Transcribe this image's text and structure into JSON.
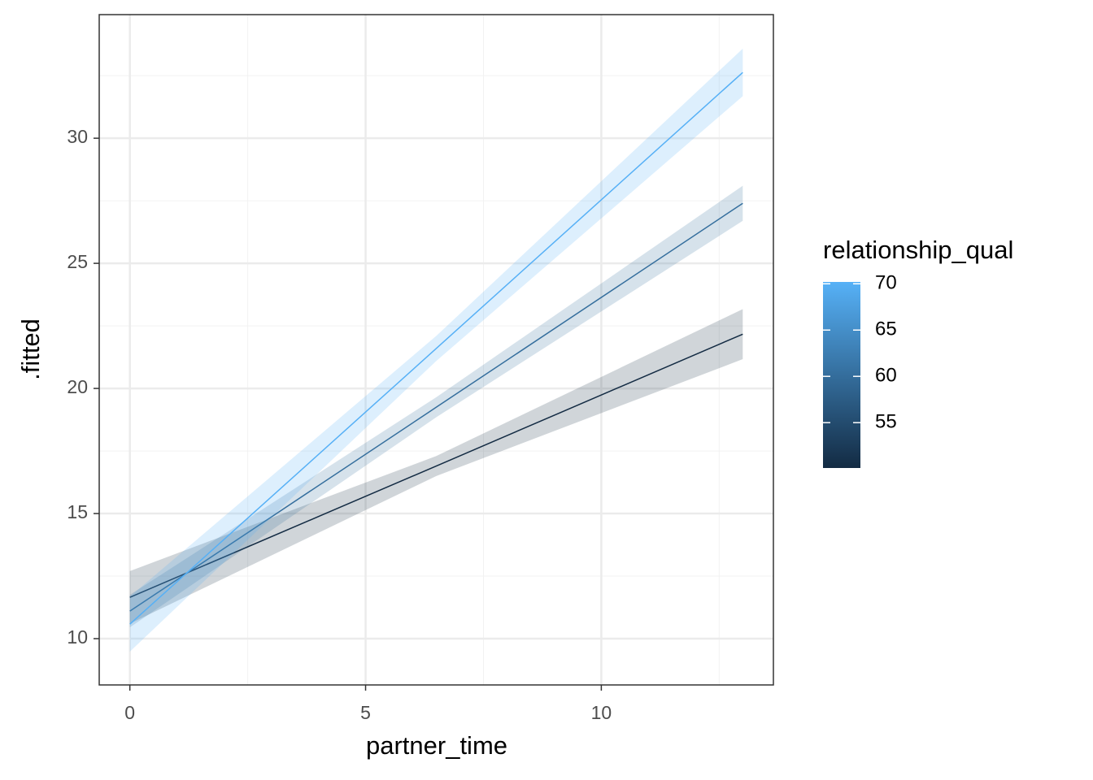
{
  "chart_data": {
    "type": "line",
    "x_label": "partner_time",
    "y_label": ".fitted",
    "x": [
      0,
      6.5,
      13
    ],
    "series": [
      {
        "level": 50.1,
        "values": [
          11.65,
          16.9,
          22.17
        ],
        "lower": [
          10.6,
          16.5,
          21.17
        ],
        "upper": [
          12.7,
          17.3,
          23.17
        ]
      },
      {
        "level": 60.1,
        "values": [
          11.1,
          19.25,
          27.4
        ],
        "lower": [
          10.45,
          18.85,
          26.7
        ],
        "upper": [
          11.75,
          19.65,
          28.1
        ]
      },
      {
        "level": 70.1,
        "values": [
          10.58,
          21.6,
          32.63
        ],
        "lower": [
          9.48,
          21.1,
          31.68
        ],
        "upper": [
          11.68,
          22.1,
          33.58
        ]
      }
    ],
    "xlim": [
      -0.65,
      13.65
    ],
    "ylim": [
      8.15,
      34.94
    ],
    "xticks": [
      0,
      5,
      10
    ],
    "yticks": [
      10,
      15,
      20,
      25,
      30
    ],
    "x_minor_ticks": [
      2.5,
      7.5,
      12.5
    ],
    "y_minor_ticks": [
      12.5,
      17.5,
      22.5,
      27.5,
      32.5
    ],
    "grid": true,
    "band_opacity": 0.2,
    "legend": {
      "title": "relationship_qual",
      "low_color": "#132B43",
      "high_color": "#56B1F7",
      "limits": [
        50.1,
        70.2
      ],
      "ticks": [
        55,
        60,
        65,
        70
      ]
    }
  }
}
